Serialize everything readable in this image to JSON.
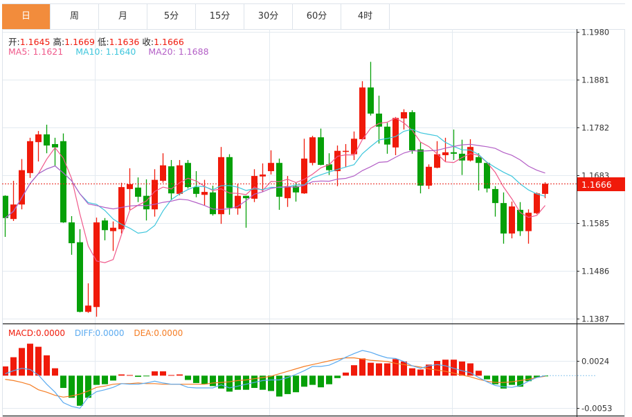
{
  "tabs": [
    {
      "label": "日",
      "active": true
    },
    {
      "label": "周"
    },
    {
      "label": "月"
    },
    {
      "label": "5分"
    },
    {
      "label": "15分"
    },
    {
      "label": "30分"
    },
    {
      "label": "60分"
    },
    {
      "label": "4时"
    }
  ],
  "ohlc_legend": {
    "open_label": "开:",
    "open": "1.1645",
    "high_label": "高:",
    "high": "1.1669",
    "low_label": "低:",
    "low": "1.1636",
    "close_label": "收:",
    "close": "1.1666"
  },
  "ma_legend": {
    "ma5": "MA5: 1.1621",
    "ma10": "MA10: 1.1640",
    "ma20": "MA20: 1.1688"
  },
  "macd_legend": {
    "macd": "MACD:0.0000",
    "diff": "DIFF:0.0000",
    "dea": "DEA:0.0000"
  },
  "last_price": "1.1666",
  "colors": {
    "up": "#f01a0a",
    "down": "#06a008",
    "active_tab": "#f28c3c",
    "ma5": "#f0588a",
    "ma10": "#3ec6dc",
    "ma20": "#b35ec6",
    "diff": "#5aaaf0",
    "dea": "#f57d24"
  },
  "chart_data": [
    {
      "type": "candlestick",
      "y_ticks": [
        "1.1980",
        "1.1881",
        "1.1782",
        "1.1683",
        "1.1585",
        "1.1486",
        "1.1387"
      ],
      "ylim": [
        1.1387,
        1.198
      ],
      "grid": true,
      "candles": [
        [
          1.1641,
          1.1642,
          1.1556,
          1.1595
        ],
        [
          1.1593,
          1.1672,
          1.1589,
          1.1623
        ],
        [
          1.1623,
          1.1717,
          1.1613,
          1.1694
        ],
        [
          1.1688,
          1.1761,
          1.1678,
          1.1754
        ],
        [
          1.1752,
          1.1775,
          1.1712,
          1.1768
        ],
        [
          1.1768,
          1.1788,
          1.1729,
          1.1745
        ],
        [
          1.1748,
          1.1761,
          1.1702,
          1.1741
        ],
        [
          1.1754,
          1.177,
          1.1585,
          1.1586
        ],
        [
          1.1586,
          1.1599,
          1.1519,
          1.1543
        ],
        [
          1.1545,
          1.1572,
          1.14,
          1.1401
        ],
        [
          1.1401,
          1.146,
          1.1399,
          1.1414
        ],
        [
          1.1411,
          1.1596,
          1.1391,
          1.1586
        ],
        [
          1.159,
          1.1595,
          1.1549,
          1.157
        ],
        [
          1.1568,
          1.1588,
          1.1527,
          1.1575
        ],
        [
          1.1572,
          1.1668,
          1.1563,
          1.1659
        ],
        [
          1.1655,
          1.1698,
          1.1612,
          1.1665
        ],
        [
          1.1658,
          1.1679,
          1.1628,
          1.1639
        ],
        [
          1.1641,
          1.1675,
          1.159,
          1.1613
        ],
        [
          1.1613,
          1.1696,
          1.1598,
          1.1674
        ],
        [
          1.1672,
          1.1729,
          1.1668,
          1.1704
        ],
        [
          1.1702,
          1.1715,
          1.1632,
          1.1646
        ],
        [
          1.1645,
          1.1715,
          1.1642,
          1.1704
        ],
        [
          1.1709,
          1.1715,
          1.1656,
          1.1659
        ],
        [
          1.1659,
          1.1692,
          1.1638,
          1.1645
        ],
        [
          1.1643,
          1.1674,
          1.1621,
          1.1649
        ],
        [
          1.1648,
          1.1662,
          1.16,
          1.1603
        ],
        [
          1.1603,
          1.1742,
          1.1583,
          1.1721
        ],
        [
          1.1721,
          1.1727,
          1.1602,
          1.1616
        ],
        [
          1.1615,
          1.1665,
          1.1602,
          1.1641
        ],
        [
          1.1641,
          1.1641,
          1.1575,
          1.1636
        ],
        [
          1.1635,
          1.1696,
          1.1628,
          1.1682
        ],
        [
          1.1681,
          1.1708,
          1.1649,
          1.1685
        ],
        [
          1.1692,
          1.1735,
          1.1685,
          1.1709
        ],
        [
          1.1709,
          1.1718,
          1.1612,
          1.1639
        ],
        [
          1.1636,
          1.1682,
          1.1618,
          1.1661
        ],
        [
          1.1661,
          1.1669,
          1.1629,
          1.1648
        ],
        [
          1.1646,
          1.1759,
          1.1645,
          1.1718
        ],
        [
          1.1709,
          1.1765,
          1.1704,
          1.1762
        ],
        [
          1.1762,
          1.178,
          1.1704,
          1.1705
        ],
        [
          1.1706,
          1.1729,
          1.1684,
          1.1694
        ],
        [
          1.1692,
          1.1745,
          1.1661,
          1.1734
        ],
        [
          1.1732,
          1.1748,
          1.1701,
          1.1734
        ],
        [
          1.1727,
          1.1774,
          1.1715,
          1.1759
        ],
        [
          1.1758,
          1.1878,
          1.1757,
          1.1865
        ],
        [
          1.1865,
          1.1918,
          1.1807,
          1.1811
        ],
        [
          1.1811,
          1.1848,
          1.1749,
          1.1784
        ],
        [
          1.1784,
          1.1792,
          1.1728,
          1.1747
        ],
        [
          1.1741,
          1.1804,
          1.1725,
          1.1802
        ],
        [
          1.1801,
          1.182,
          1.1778,
          1.1814
        ],
        [
          1.1814,
          1.1818,
          1.1728,
          1.1735
        ],
        [
          1.1737,
          1.1752,
          1.1646,
          1.1662
        ],
        [
          1.1662,
          1.1706,
          1.1655,
          1.1701
        ],
        [
          1.1699,
          1.1754,
          1.1698,
          1.1727
        ],
        [
          1.1725,
          1.1761,
          1.1712,
          1.1731
        ],
        [
          1.1731,
          1.1778,
          1.1715,
          1.1728
        ],
        [
          1.1728,
          1.1757,
          1.1684,
          1.1714
        ],
        [
          1.1714,
          1.1758,
          1.1712,
          1.1742
        ],
        [
          1.1721,
          1.1729,
          1.1652,
          1.1709
        ],
        [
          1.1709,
          1.1711,
          1.1648,
          1.1656
        ],
        [
          1.1655,
          1.1661,
          1.1598,
          1.1626
        ],
        [
          1.1626,
          1.1648,
          1.1542,
          1.1563
        ],
        [
          1.1563,
          1.1629,
          1.1553,
          1.1619
        ],
        [
          1.1612,
          1.1628,
          1.1558,
          1.1568
        ],
        [
          1.1568,
          1.1613,
          1.1542,
          1.1606
        ],
        [
          1.1605,
          1.1648,
          1.1603,
          1.1646
        ],
        [
          1.1645,
          1.1669,
          1.1636,
          1.1666
        ]
      ],
      "candle_format": [
        "open",
        "high",
        "low",
        "close"
      ],
      "series": [
        {
          "name": "MA5",
          "period": 5
        },
        {
          "name": "MA10",
          "period": 10
        },
        {
          "name": "MA20",
          "period": 20
        }
      ]
    },
    {
      "type": "bar",
      "y_ticks": [
        "0.0024",
        "-0.0053"
      ],
      "ylim": [
        -0.0053,
        0.0024
      ],
      "macd": [
        0.0015,
        0.003,
        0.0045,
        0.0052,
        0.0047,
        0.0033,
        0.0012,
        -0.002,
        -0.0036,
        -0.0049,
        -0.0036,
        -0.0015,
        -0.0014,
        -0.0008,
        0.0002,
        0.0001,
        -0.0002,
        -0.0001,
        0.0007,
        0.0007,
        0.0001,
        0.0002,
        -0.0007,
        -0.0012,
        -0.0014,
        -0.0017,
        -0.0021,
        -0.0026,
        -0.0023,
        -0.0023,
        -0.002,
        -0.0023,
        -0.0025,
        -0.0034,
        -0.003,
        -0.0027,
        -0.0018,
        -0.0015,
        -0.0019,
        -0.0014,
        -0.0004,
        0.0005,
        0.0017,
        0.0028,
        0.0021,
        0.002,
        0.002,
        0.0027,
        0.0023,
        0.0012,
        0.001,
        0.0018,
        0.0024,
        0.0026,
        0.0026,
        0.0023,
        0.002,
        0.0008,
        -0.0006,
        -0.0014,
        -0.0021,
        -0.0015,
        -0.0018,
        -0.0009,
        -0.0003,
        -0.0001
      ],
      "diff": [
        0.0003,
        0.0008,
        0.0012,
        0.001,
        0.0001,
        -0.0014,
        -0.0027,
        -0.0044,
        -0.005,
        -0.0053,
        -0.0035,
        -0.0026,
        -0.0023,
        -0.0019,
        -0.0013,
        -0.0014,
        -0.0014,
        -0.0012,
        -0.0009,
        -0.0012,
        -0.0014,
        -0.0014,
        -0.0019,
        -0.002,
        -0.002,
        -0.002,
        -0.0015,
        -0.002,
        -0.0017,
        -0.0014,
        -0.0011,
        -0.0008,
        -0.0007,
        -0.0007,
        -0.0003,
        0.0002,
        0.0008,
        0.0015,
        0.0015,
        0.0017,
        0.0023,
        0.003,
        0.0036,
        0.0041,
        0.0038,
        0.0033,
        0.0029,
        0.0028,
        0.0023,
        0.0016,
        0.0012,
        0.0016,
        0.0018,
        0.0016,
        0.0012,
        0.0008,
        0.0005,
        -0.0003,
        -0.001,
        -0.0016,
        -0.0018,
        -0.0019,
        -0.0016,
        -0.0009,
        -0.0003,
        0.0
      ],
      "dea": [
        -0.0006,
        -0.0008,
        -0.0011,
        -0.0015,
        -0.0023,
        -0.0027,
        -0.0032,
        -0.0035,
        -0.0033,
        -0.003,
        -0.0025,
        -0.0019,
        -0.0017,
        -0.0014,
        -0.0013,
        -0.0013,
        -0.0012,
        -0.0013,
        -0.0013,
        -0.0014,
        -0.0014,
        -0.0014,
        -0.0014,
        -0.0014,
        -0.0014,
        -0.0012,
        -0.0011,
        -0.001,
        -0.0008,
        -0.0007,
        -0.0005,
        -0.0003,
        -0.0001,
        0.0003,
        0.0007,
        0.0011,
        0.0015,
        0.0018,
        0.0021,
        0.0024,
        0.0027,
        0.0029,
        0.0029,
        0.0027,
        0.0025,
        0.0024,
        0.0023,
        0.002,
        0.0018,
        0.0016,
        0.0014,
        0.0011,
        0.0009,
        0.0007,
        0.0004,
        0.0001,
        -0.0002,
        -0.0006,
        -0.0009,
        -0.0011,
        -0.0011,
        -0.001,
        -0.0008,
        -0.0006,
        -0.0003,
        -0.0001
      ]
    }
  ]
}
